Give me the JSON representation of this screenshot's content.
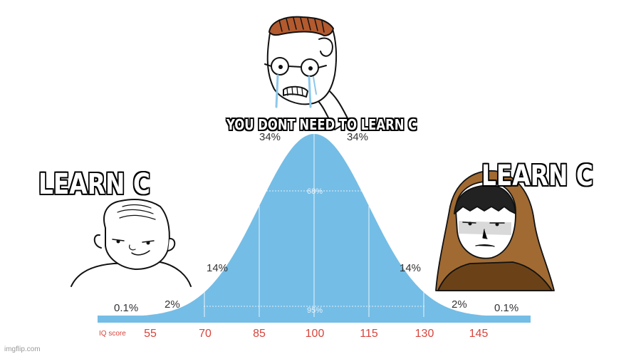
{
  "captions": {
    "top": "YOU DONT NEED TO LEARN C",
    "left": "LEARN C",
    "right": "LEARN C"
  },
  "chart_data": {
    "type": "area",
    "curve": "normal distribution",
    "xlabel": "IQ score",
    "x_ticks": [
      "55",
      "70",
      "85",
      "100",
      "115",
      "130",
      "145"
    ],
    "region_labels": [
      "0.1%",
      "2%",
      "14%",
      "34%",
      "34%",
      "14%",
      "2%",
      "0.1%"
    ],
    "band_labels": [
      "68%",
      "95%"
    ],
    "fill_color": "#74bde6",
    "tick_label_color": "#d6453d"
  },
  "characters": [
    {
      "name": "crying-nerd-wojak"
    },
    {
      "name": "simple-wojak"
    },
    {
      "name": "hooded-wojak"
    }
  ],
  "watermark": "imgflip.com"
}
